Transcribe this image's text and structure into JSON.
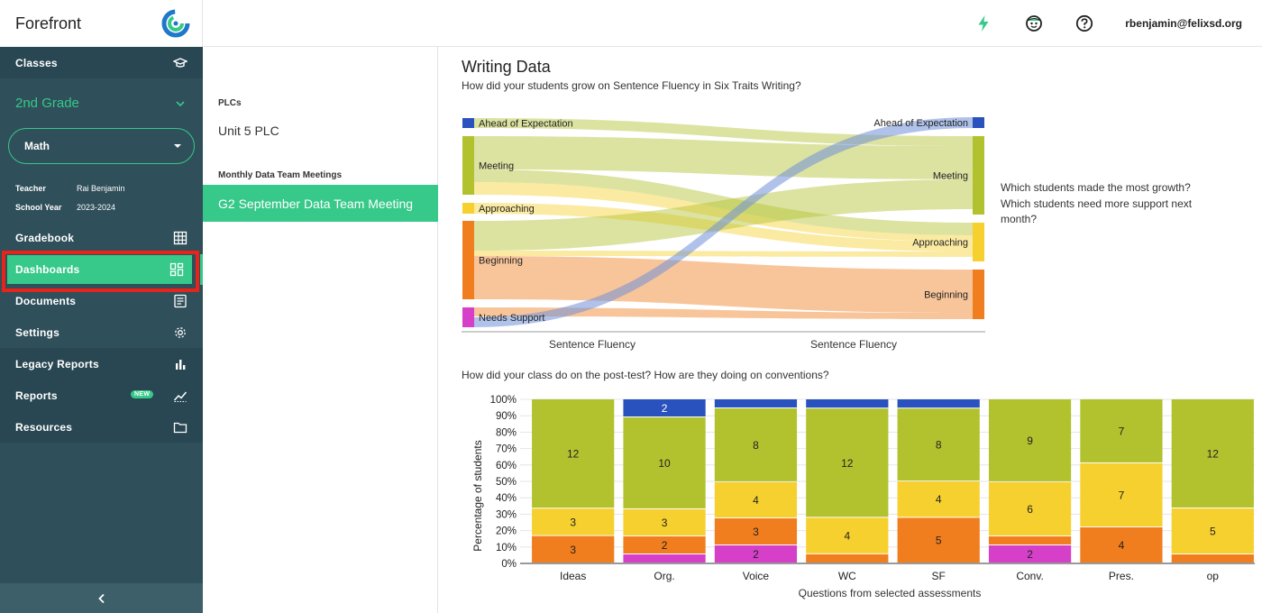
{
  "app": {
    "brand": "Forefront",
    "user_email": "rbenjamin@felixsd.org"
  },
  "sidebar": {
    "classes_label": "Classes",
    "grade": "2nd Grade",
    "subject": "Math",
    "teacher_key": "Teacher",
    "teacher_value": "Rai Benjamin",
    "year_key": "School Year",
    "year_value": "2023-2024",
    "items": [
      {
        "label": "Gradebook",
        "icon": "grid-icon"
      },
      {
        "label": "Dashboards",
        "icon": "dashboard-icon",
        "active": true
      },
      {
        "label": "Documents",
        "icon": "document-icon"
      },
      {
        "label": "Settings",
        "icon": "gear-icon"
      },
      {
        "label": "Legacy Reports",
        "icon": "bar-chart-icon"
      },
      {
        "label": "Reports",
        "icon": "trend-icon",
        "badge": "NEW"
      },
      {
        "label": "Resources",
        "icon": "folder-icon"
      }
    ]
  },
  "plc_panel": {
    "plcs_heading": "PLCs",
    "plc_item": "Unit 5 PLC",
    "meetings_heading": "Monthly Data Team Meetings",
    "selected_meeting": "G2 September Data Team Meeting"
  },
  "main": {
    "title": "Writing Data",
    "question1": "How did your students grow on Sentence Fluency in Six Traits Writing?",
    "side_question": "Which students made the most growth? Which students need more support next month?",
    "question2": "How did your class do on the post-test? How are they doing on conventions?"
  },
  "colors": {
    "ahead": "#2a52be",
    "meeting": "#b2c22e",
    "approaching": "#f6d02e",
    "beginning": "#f07e1e",
    "needs_support": "#d640c8",
    "accent": "#36c98a"
  },
  "chart_data": [
    {
      "type": "sankey",
      "left_axis_label": "Sentence Fluency",
      "right_axis_label": "Sentence Fluency",
      "left_nodes": [
        "Ahead of Expectation",
        "Meeting",
        "Approaching",
        "Beginning",
        "Needs Support"
      ],
      "right_nodes": [
        "Ahead of Expectation",
        "Meeting",
        "Approaching",
        "Beginning"
      ]
    },
    {
      "type": "bar",
      "stacked": true,
      "ylabel": "Percentage of students",
      "xlabel": "Questions from selected assessments",
      "yticks": [
        "0%",
        "10%",
        "20%",
        "30%",
        "40%",
        "50%",
        "60%",
        "70%",
        "80%",
        "90%",
        "100%"
      ],
      "categories": [
        "Ideas",
        "Org.",
        "Voice",
        "WC",
        "SF",
        "Conv.",
        "Pres.",
        "op"
      ],
      "series": [
        {
          "key": "needs_support",
          "values": [
            0,
            5.5,
            11,
            0,
            0,
            11,
            0,
            0
          ],
          "labels": [
            "",
            "",
            "2",
            "",
            "",
            "2",
            "",
            ""
          ]
        },
        {
          "key": "beginning",
          "values": [
            16.7,
            11,
            16.5,
            5.6,
            27.8,
            5.5,
            22,
            5.5
          ],
          "labels": [
            "3",
            "2",
            "3",
            "",
            "5",
            "",
            "4",
            ""
          ]
        },
        {
          "key": "approaching",
          "values": [
            16.7,
            16.5,
            22,
            22.2,
            22.2,
            33,
            39,
            28
          ],
          "labels": [
            "3",
            "3",
            "4",
            "4",
            "4",
            "6",
            "7",
            "5"
          ]
        },
        {
          "key": "meeting",
          "values": [
            66.6,
            56,
            45,
            66.6,
            44.4,
            50.5,
            39,
            66.5
          ],
          "labels": [
            "12",
            "10",
            "8",
            "12",
            "8",
            "9",
            "7",
            "12"
          ]
        },
        {
          "key": "ahead",
          "values": [
            0,
            11,
            5.5,
            5.6,
            5.6,
            0,
            0,
            0
          ],
          "labels": [
            "",
            "2",
            "",
            "",
            "",
            "",
            "",
            ""
          ]
        }
      ]
    }
  ]
}
